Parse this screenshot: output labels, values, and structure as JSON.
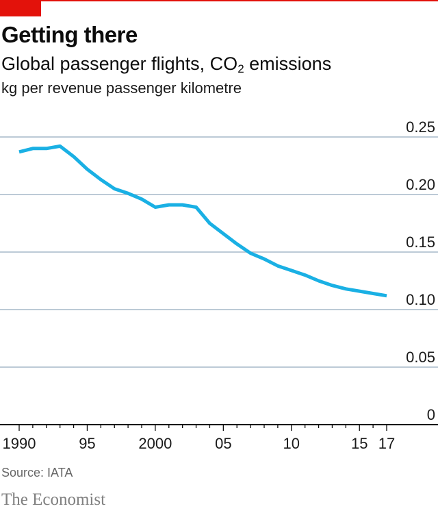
{
  "header": {
    "title": "Getting there",
    "subtitle_main": "Global passenger flights, CO",
    "subtitle_sub": "2",
    "subtitle_end": " emissions",
    "unit": "kg per revenue passenger kilometre"
  },
  "footer": {
    "source": "Source: IATA",
    "brand": "The Economist"
  },
  "colors": {
    "accent": "#e3120b",
    "line": "#1ab0e4",
    "grid": "#a6b8c8",
    "axis": "#0c0c0c"
  },
  "chart_data": {
    "type": "line",
    "title": "Getting there",
    "subtitle": "Global passenger flights, CO2 emissions",
    "ylabel": "kg per revenue passenger kilometre",
    "xlim": [
      1990,
      2017
    ],
    "ylim": [
      0,
      0.25
    ],
    "y_ticks": [
      0.25,
      0.2,
      0.15,
      0.1,
      0.05,
      0
    ],
    "y_tick_labels": [
      "0.25",
      "0.20",
      "0.15",
      "0.10",
      "0.05",
      "0"
    ],
    "x_ticks": [
      1990,
      1995,
      2000,
      2005,
      2010,
      2015,
      2017
    ],
    "x_tick_labels": [
      "1990",
      "95",
      "2000",
      "05",
      "10",
      "15",
      "17"
    ],
    "grid": true,
    "series": [
      {
        "x": [
          1990,
          1991,
          1992,
          1993,
          1994,
          1995,
          1996,
          1997,
          1998,
          1999,
          2000,
          2001,
          2002,
          2003,
          2004,
          2005,
          2006,
          2007,
          2008,
          2009,
          2010,
          2011,
          2012,
          2013,
          2014,
          2015,
          2016,
          2017
        ],
        "values": [
          0.237,
          0.24,
          0.24,
          0.242,
          0.233,
          0.222,
          0.213,
          0.205,
          0.201,
          0.196,
          0.189,
          0.191,
          0.191,
          0.189,
          0.175,
          0.166,
          0.157,
          0.149,
          0.144,
          0.138,
          0.134,
          0.13,
          0.125,
          0.121,
          0.118,
          0.116,
          0.114,
          0.112
        ]
      }
    ]
  }
}
